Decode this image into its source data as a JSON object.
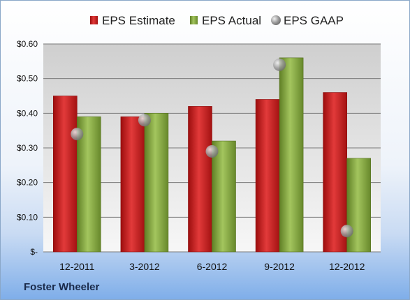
{
  "footer": {
    "company": "Foster Wheeler"
  },
  "chart_data": {
    "type": "bar",
    "categories": [
      "12-2011",
      "3-2012",
      "6-2012",
      "9-2012",
      "12-2012"
    ],
    "series": [
      {
        "name": "EPS Estimate",
        "kind": "bar",
        "color": "#cc1f1f",
        "values": [
          0.45,
          0.39,
          0.42,
          0.44,
          0.46
        ]
      },
      {
        "name": "EPS Actual",
        "kind": "bar",
        "color": "#8db046",
        "values": [
          0.39,
          0.4,
          0.32,
          0.56,
          0.27
        ]
      },
      {
        "name": "EPS GAAP",
        "kind": "marker",
        "color": "#b0b0b0",
        "values": [
          0.34,
          0.38,
          0.29,
          0.54,
          0.06
        ]
      }
    ],
    "yticks": [
      "$-",
      "$0.10",
      "$0.20",
      "$0.30",
      "$0.40",
      "$0.50",
      "$0.60"
    ],
    "ylim": [
      0,
      0.6
    ],
    "grid": true,
    "legend": "top",
    "title": "",
    "xlabel": "",
    "ylabel": ""
  }
}
